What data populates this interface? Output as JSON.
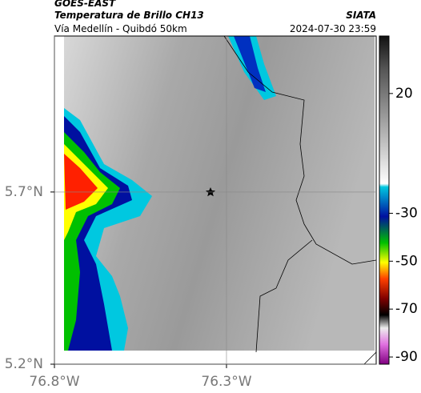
{
  "header": {
    "title": "GOES-EAST",
    "subtitle": "Temperatura de Brillo CH13",
    "route": "Vía Medellín - Quibdó 50km",
    "source": "SIATA",
    "timestamp": "2024-07-30 23:59"
  },
  "map": {
    "xlim": [
      -76.8,
      -75.865
    ],
    "ylim": [
      5.2,
      6.153
    ],
    "xticks": [
      {
        "value": -76.8,
        "label": "76.8°W"
      },
      {
        "value": -76.3,
        "label": "76.3°W"
      }
    ],
    "yticks": [
      {
        "value": 5.2,
        "label": "5.2°N"
      },
      {
        "value": 5.7,
        "label": "5.7°N"
      }
    ],
    "colorbar": {
      "clim": [
        -93,
        44
      ],
      "ticks": [
        20,
        -30,
        -50,
        -70,
        -90
      ]
    }
  }
}
